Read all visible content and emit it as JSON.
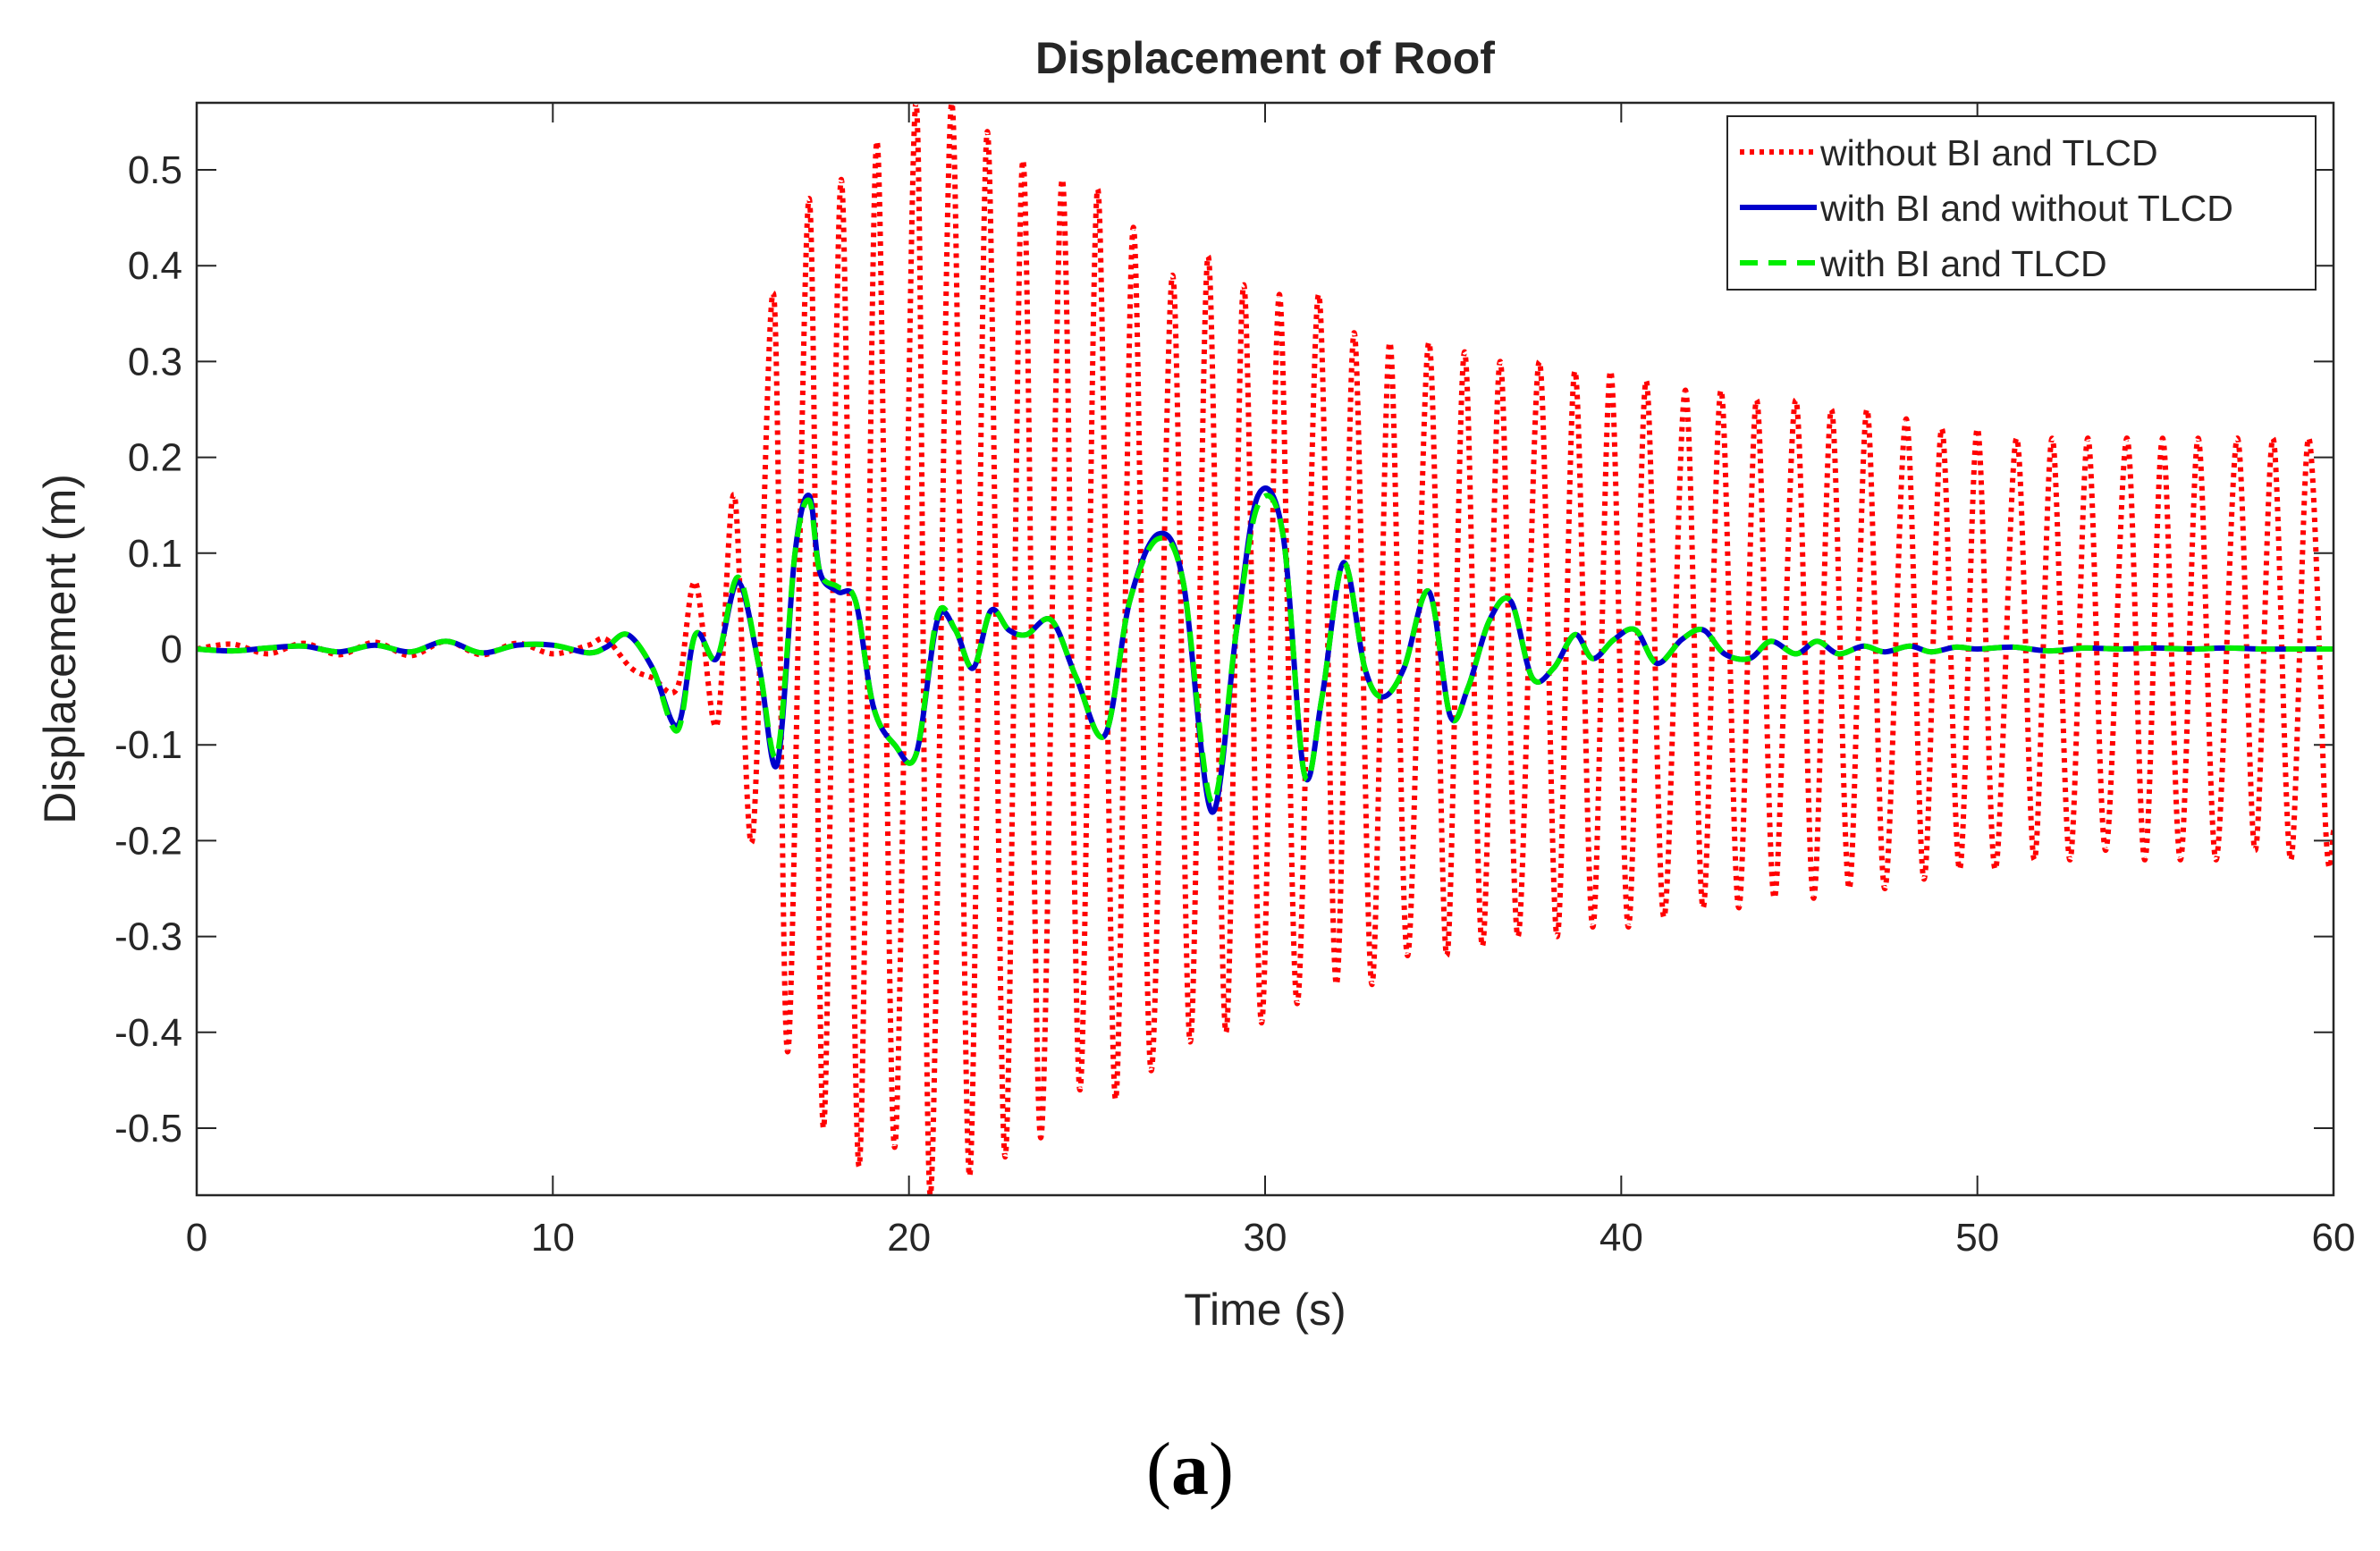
{
  "chart_data": {
    "type": "line",
    "title": "Displacement of Roof",
    "xlabel": "Time (s)",
    "ylabel": "Displacement (m)",
    "xlim": [
      0,
      60
    ],
    "ylim": [
      -0.57,
      0.57
    ],
    "xticks": [
      0,
      10,
      20,
      30,
      40,
      50,
      60
    ],
    "xtick_labels": [
      "0",
      "10",
      "20",
      "30",
      "40",
      "50",
      "60"
    ],
    "yticks": [
      0.5,
      0.4,
      0.3,
      0.2,
      0.1,
      0,
      -0.1,
      -0.2,
      -0.3,
      -0.4,
      -0.5
    ],
    "ytick_labels": [
      "0.5",
      "0.4",
      "0.3",
      "0.2",
      "0.1",
      "0",
      "-0.1",
      "-0.2",
      "-0.3",
      "-0.4",
      "-0.5"
    ],
    "grid": false,
    "legend_position": "top-right",
    "series": [
      {
        "name": "without BI and TLCD",
        "color": "#ff0000",
        "style": "dotted",
        "description_points_x": [
          0,
          1,
          2,
          3,
          4,
          5,
          6,
          7,
          8,
          9,
          10,
          11,
          11.5,
          12.2,
          12.8,
          13.5,
          14.0,
          14.6,
          15.1,
          15.6,
          16.2,
          16.6,
          17.2,
          17.6,
          18.1,
          18.6,
          19.1,
          19.6,
          20.2,
          20.6,
          21.2,
          21.7,
          22.2,
          22.7,
          23.2,
          23.7,
          24.3,
          24.8,
          25.3,
          25.8,
          26.3,
          26.8,
          27.4,
          27.9,
          28.4,
          28.9,
          29.4,
          29.9,
          30.4,
          30.9,
          31.5,
          32.0,
          32.5,
          33.0,
          33.5,
          34.0,
          34.6,
          35.1,
          35.6,
          36.1,
          36.6,
          37.1,
          37.7,
          38.2,
          38.7,
          39.2,
          39.7,
          40.2,
          40.7,
          41.2,
          41.8,
          42.3,
          42.8,
          43.3,
          43.8,
          44.3,
          44.9,
          45.4,
          45.9,
          46.4,
          46.9,
          47.4,
          48.0,
          48.5,
          49.0,
          49.5,
          50.0,
          50.5,
          51.1,
          51.6,
          52.1,
          52.6,
          53.1,
          53.6,
          54.2,
          54.7,
          55.2,
          55.7,
          56.2,
          56.7,
          57.3,
          57.8,
          58.3,
          58.8,
          59.3,
          59.8,
          60.0
        ],
        "description_points_y": [
          0,
          0.005,
          -0.005,
          0.006,
          -0.006,
          0.007,
          -0.007,
          0.008,
          -0.006,
          0.006,
          -0.005,
          0.004,
          0.01,
          -0.02,
          -0.03,
          -0.04,
          0.07,
          -0.08,
          0.16,
          -0.2,
          0.37,
          -0.42,
          0.47,
          -0.5,
          0.49,
          -0.54,
          0.53,
          -0.52,
          0.57,
          -0.57,
          0.57,
          -0.55,
          0.54,
          -0.53,
          0.51,
          -0.51,
          0.49,
          -0.46,
          0.48,
          -0.47,
          0.44,
          -0.44,
          0.39,
          -0.41,
          0.41,
          -0.4,
          0.38,
          -0.39,
          0.37,
          -0.37,
          0.37,
          -0.35,
          0.33,
          -0.35,
          0.32,
          -0.32,
          0.32,
          -0.32,
          0.31,
          -0.31,
          0.3,
          -0.3,
          0.3,
          -0.3,
          0.29,
          -0.29,
          0.29,
          -0.29,
          0.28,
          -0.28,
          0.27,
          -0.27,
          0.27,
          -0.27,
          0.26,
          -0.26,
          0.26,
          -0.26,
          0.25,
          -0.25,
          0.25,
          -0.25,
          0.24,
          -0.24,
          0.23,
          -0.23,
          0.23,
          -0.23,
          0.22,
          -0.22,
          0.22,
          -0.22,
          0.22,
          -0.21,
          0.22,
          -0.22,
          0.22,
          -0.22,
          0.22,
          -0.22,
          0.22,
          -0.21,
          0.22,
          -0.22,
          0.22,
          -0.2,
          -0.19
        ]
      },
      {
        "name": "with BI and without TLCD",
        "color": "#0000cc",
        "style": "solid",
        "description_points_x": [
          0,
          1,
          2,
          3,
          4,
          5,
          6,
          7,
          8,
          9,
          10,
          11,
          11.5,
          12.1,
          12.8,
          13.5,
          14.0,
          14.6,
          15.2,
          15.8,
          16.3,
          16.8,
          17.2,
          17.5,
          18.0,
          18.5,
          19.0,
          19.6,
          20.2,
          20.8,
          21.3,
          21.8,
          22.3,
          22.8,
          23.3,
          24.0,
          24.7,
          25.5,
          26.2,
          27.0,
          27.7,
          28.5,
          29.2,
          29.8,
          30.5,
          31.1,
          31.6,
          32.2,
          32.8,
          33.3,
          33.9,
          34.6,
          35.2,
          35.7,
          36.3,
          36.9,
          37.5,
          38.1,
          38.7,
          39.2,
          39.8,
          40.4,
          41.0,
          41.7,
          42.3,
          42.9,
          43.6,
          44.2,
          44.9,
          45.5,
          46.1,
          46.8,
          47.4,
          48.1,
          48.7,
          49.4,
          50.0,
          51.0,
          52.0,
          53.0,
          54.0,
          55.0,
          56.0,
          57.0,
          58.0,
          59.0,
          60.0
        ],
        "description_points_y": [
          0,
          -0.002,
          0.001,
          0.003,
          -0.003,
          0.004,
          -0.003,
          0.008,
          -0.004,
          0.004,
          0.004,
          -0.004,
          0.002,
          0.015,
          -0.02,
          -0.08,
          0.015,
          -0.01,
          0.07,
          -0.02,
          -0.12,
          0.1,
          0.16,
          0.08,
          0.06,
          0.05,
          -0.06,
          -0.1,
          -0.11,
          0.03,
          0.02,
          -0.02,
          0.04,
          0.02,
          0.015,
          0.03,
          -0.03,
          -0.09,
          0.05,
          0.12,
          0.07,
          -0.17,
          0.02,
          0.16,
          0.12,
          -0.13,
          -0.05,
          0.09,
          -0.02,
          -0.05,
          -0.02,
          0.06,
          -0.07,
          -0.04,
          0.03,
          0.05,
          -0.03,
          -0.02,
          0.015,
          -0.01,
          0.01,
          0.02,
          -0.015,
          0.01,
          0.02,
          -0.005,
          -0.01,
          0.008,
          -0.005,
          0.008,
          -0.005,
          0.003,
          -0.003,
          0.003,
          -0.003,
          0.002,
          0,
          0.002,
          -0.002,
          0.001,
          0,
          0.001,
          0,
          0.001,
          0,
          0,
          0
        ]
      },
      {
        "name": "with BI and TLCD",
        "color": "#00ee00",
        "style": "dashed",
        "description_points_x": [
          0,
          1,
          2,
          3,
          4,
          5,
          6,
          7,
          8,
          9,
          10,
          11,
          11.5,
          12.1,
          12.8,
          13.5,
          14.0,
          14.6,
          15.2,
          15.8,
          16.3,
          16.8,
          17.2,
          17.5,
          18.0,
          18.5,
          19.0,
          19.6,
          20.2,
          20.8,
          21.3,
          21.8,
          22.3,
          22.8,
          23.3,
          24.0,
          24.7,
          25.5,
          26.2,
          27.0,
          27.7,
          28.5,
          29.2,
          29.8,
          30.5,
          31.1,
          31.6,
          32.2,
          32.8,
          33.3,
          33.9,
          34.6,
          35.2,
          35.7,
          36.3,
          36.9,
          37.5,
          38.1,
          38.7,
          39.2,
          39.8,
          40.4,
          41.0,
          41.7,
          42.3,
          42.9,
          43.6,
          44.2,
          44.9,
          45.5,
          46.1,
          46.8,
          47.4,
          48.1,
          48.7,
          49.4,
          50.0,
          51.0,
          52.0,
          53.0,
          54.0,
          55.0,
          56.0,
          57.0,
          58.0,
          59.0,
          60.0
        ],
        "description_points_y": [
          0,
          -0.002,
          0.001,
          0.003,
          -0.003,
          0.004,
          -0.003,
          0.008,
          -0.004,
          0.004,
          0.004,
          -0.004,
          0.002,
          0.015,
          -0.02,
          -0.085,
          0.015,
          -0.01,
          0.075,
          -0.02,
          -0.11,
          0.1,
          0.155,
          0.08,
          0.065,
          0.05,
          -0.06,
          -0.1,
          -0.11,
          0.035,
          0.02,
          -0.02,
          0.04,
          0.02,
          0.015,
          0.03,
          -0.03,
          -0.09,
          0.05,
          0.115,
          0.07,
          -0.16,
          0.02,
          0.15,
          0.12,
          -0.13,
          -0.05,
          0.09,
          -0.02,
          -0.05,
          -0.02,
          0.06,
          -0.07,
          -0.04,
          0.03,
          0.05,
          -0.03,
          -0.02,
          0.015,
          -0.01,
          0.01,
          0.02,
          -0.015,
          0.01,
          0.02,
          -0.005,
          -0.01,
          0.008,
          -0.005,
          0.008,
          -0.005,
          0.003,
          -0.003,
          0.003,
          -0.003,
          0.002,
          0,
          0.002,
          -0.002,
          0.001,
          0,
          0.001,
          0,
          0.001,
          0,
          0,
          0
        ]
      }
    ]
  },
  "caption": {
    "label": "a",
    "open": "(",
    "close": ")"
  }
}
